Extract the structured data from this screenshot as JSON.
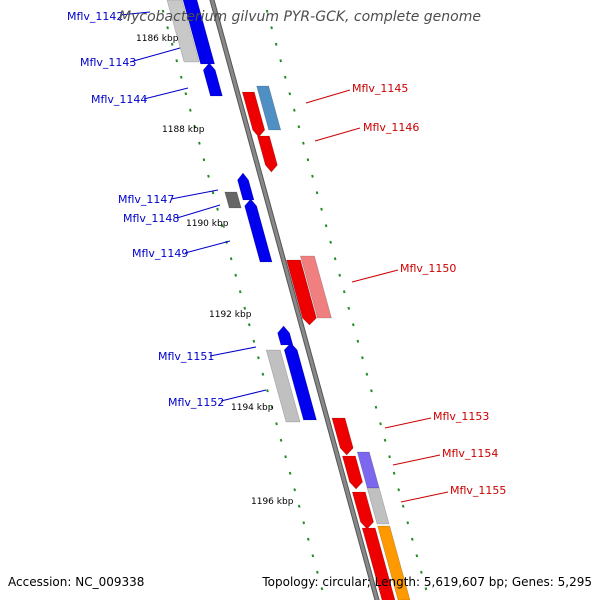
{
  "title": "Mycobacterium gilvum PYR-GCK, complete genome",
  "footer": {
    "accession": "Accession: NC_009338",
    "topology": "Topology: circular; Length: 5,619,607 bp; Genes: 5,295"
  },
  "colors": {
    "forward_label": "#0000cc",
    "reverse_label": "#cc0000",
    "backbone": "#888888",
    "tick": "#228b22"
  },
  "kbp_labels": [
    "1186 kbp",
    "1188 kbp",
    "1190 kbp",
    "1192 kbp",
    "1194 kbp",
    "1196 kbp"
  ],
  "genes": [
    {
      "id": "Mflv_1142",
      "strand": "forward"
    },
    {
      "id": "Mflv_1143",
      "strand": "forward"
    },
    {
      "id": "Mflv_1144",
      "strand": "forward"
    },
    {
      "id": "Mflv_1145",
      "strand": "reverse"
    },
    {
      "id": "Mflv_1146",
      "strand": "reverse"
    },
    {
      "id": "Mflv_1147",
      "strand": "forward"
    },
    {
      "id": "Mflv_1148",
      "strand": "forward"
    },
    {
      "id": "Mflv_1149",
      "strand": "forward"
    },
    {
      "id": "Mflv_1150",
      "strand": "reverse"
    },
    {
      "id": "Mflv_1151",
      "strand": "forward"
    },
    {
      "id": "Mflv_1152",
      "strand": "forward"
    },
    {
      "id": "Mflv_1153",
      "strand": "reverse"
    },
    {
      "id": "Mflv_1154",
      "strand": "reverse"
    },
    {
      "id": "Mflv_1155",
      "strand": "reverse"
    }
  ]
}
